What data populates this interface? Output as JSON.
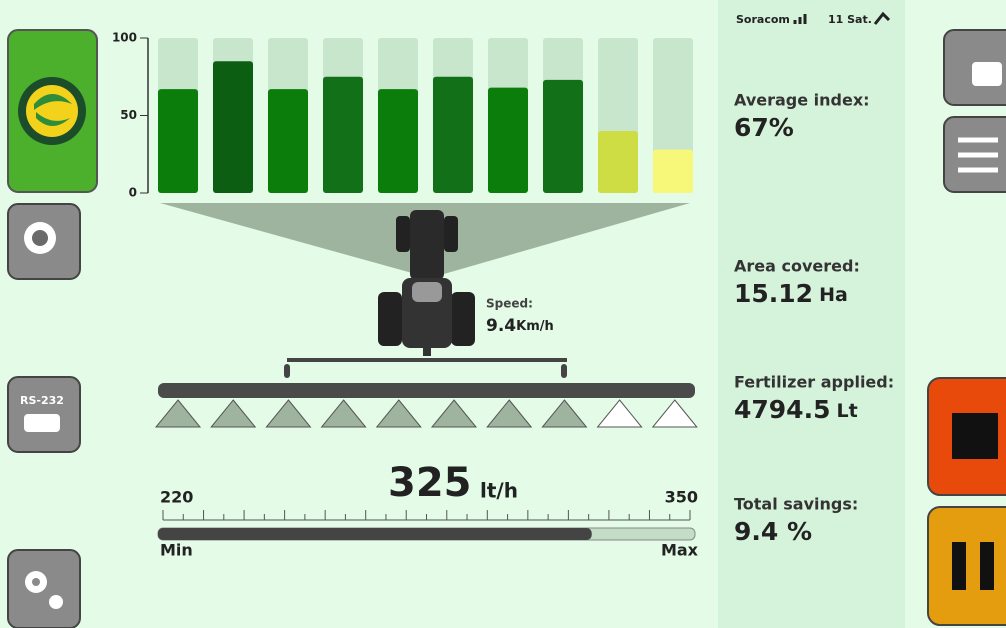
{
  "status": {
    "carrier": "Soracom",
    "satellites": "11 Sat."
  },
  "chart_data": {
    "type": "bar",
    "values": [
      67,
      85,
      67,
      75,
      67,
      75,
      68,
      73,
      40,
      28
    ],
    "colors": [
      "#0b7d0b",
      "#0b5e12",
      "#0b7d0b",
      "#127018",
      "#0b7d0b",
      "#127018",
      "#0b7d0b",
      "#127018",
      "#cfdd45",
      "#f7f77a"
    ],
    "track_color": "#c7e6cc",
    "ylim": [
      0,
      100
    ],
    "yticks": [
      0,
      50,
      100
    ]
  },
  "tractor": {
    "speed_label": "Speed:",
    "speed_value": "9.4",
    "speed_unit": "Km/h"
  },
  "flow": {
    "value": 325,
    "unit": "lt/h",
    "min": 220,
    "max": 350,
    "min_label": "Min",
    "max_label": "Max"
  },
  "stats": [
    {
      "label": "Average index:",
      "value": "67%"
    },
    {
      "label": "Area covered:",
      "value": "15.12",
      "unit": "Ha"
    },
    {
      "label": "Fertilizer applied:",
      "value": "4794.5",
      "unit": "Lt"
    },
    {
      "label": "Total savings:",
      "value": "9.4 %"
    }
  ],
  "buttons": {
    "serial": "RS-232"
  }
}
